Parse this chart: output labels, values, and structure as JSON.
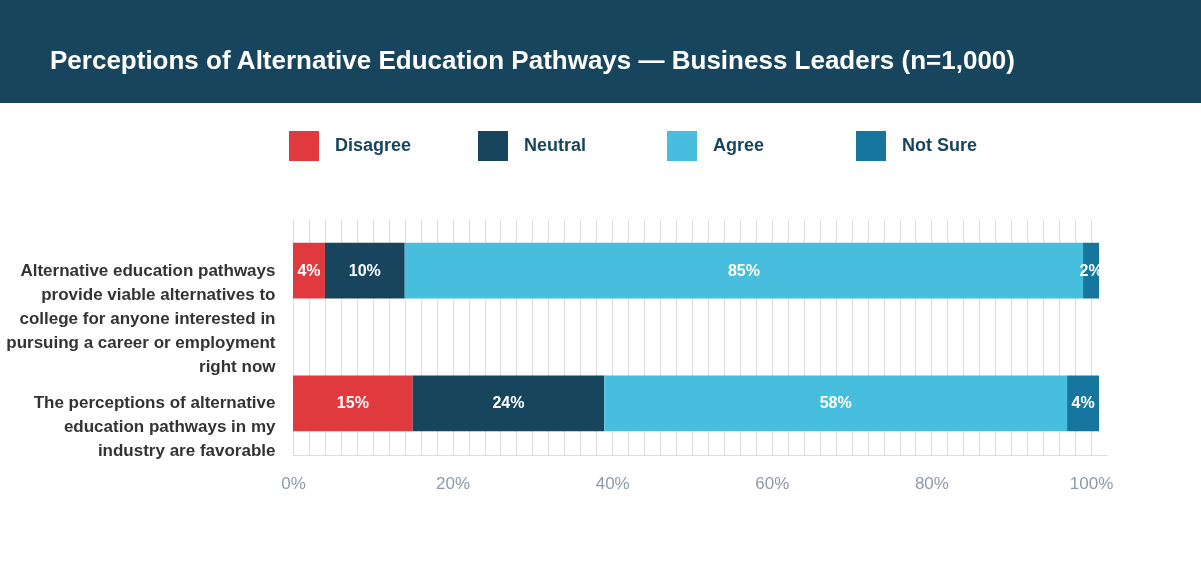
{
  "chart_data": {
    "type": "bar",
    "orientation": "horizontal",
    "stacked": true,
    "title": "Perceptions of Alternative Education Pathways — Business Leaders (n=1,000)",
    "categories": [
      "Alternative education pathways provide viable alternatives to college for anyone interested in pursuing a career or employment right now",
      "The perceptions of alternative education pathways in my industry are favorable"
    ],
    "series": [
      {
        "name": "Disagree",
        "color": "#e0393e",
        "values": [
          4,
          15
        ],
        "value_labels": [
          "4%",
          "15%"
        ]
      },
      {
        "name": "Neutral",
        "color": "#17455e",
        "values": [
          10,
          24
        ],
        "value_labels": [
          "10%",
          "24%"
        ]
      },
      {
        "name": "Agree",
        "color": "#47bede",
        "values": [
          85,
          58
        ],
        "value_labels": [
          "85%",
          "58%"
        ]
      },
      {
        "name": "Not Sure",
        "color": "#17769e",
        "values": [
          2,
          4
        ],
        "value_labels": [
          "2%",
          "4%"
        ]
      }
    ],
    "xlim": [
      0,
      102
    ],
    "xticks": [
      {
        "value": 0,
        "label": "0%"
      },
      {
        "value": 2,
        "label": null
      },
      {
        "value": 4,
        "label": null
      },
      {
        "value": 6,
        "label": null
      },
      {
        "value": 8,
        "label": null
      },
      {
        "value": 10,
        "label": null
      },
      {
        "value": 12,
        "label": null
      },
      {
        "value": 14,
        "label": null
      },
      {
        "value": 16,
        "label": null
      },
      {
        "value": 18,
        "label": null
      },
      {
        "value": 20,
        "label": "20%"
      },
      {
        "value": 22,
        "label": null
      },
      {
        "value": 24,
        "label": null
      },
      {
        "value": 26,
        "label": null
      },
      {
        "value": 28,
        "label": null
      },
      {
        "value": 30,
        "label": null
      },
      {
        "value": 32,
        "label": null
      },
      {
        "value": 34,
        "label": null
      },
      {
        "value": 36,
        "label": null
      },
      {
        "value": 38,
        "label": null
      },
      {
        "value": 40,
        "label": "40%"
      },
      {
        "value": 42,
        "label": null
      },
      {
        "value": 44,
        "label": null
      },
      {
        "value": 46,
        "label": null
      },
      {
        "value": 48,
        "label": null
      },
      {
        "value": 50,
        "label": null
      },
      {
        "value": 52,
        "label": null
      },
      {
        "value": 54,
        "label": null
      },
      {
        "value": 56,
        "label": null
      },
      {
        "value": 58,
        "label": null
      },
      {
        "value": 60,
        "label": "60%"
      },
      {
        "value": 62,
        "label": null
      },
      {
        "value": 64,
        "label": null
      },
      {
        "value": 66,
        "label": null
      },
      {
        "value": 68,
        "label": null
      },
      {
        "value": 70,
        "label": null
      },
      {
        "value": 72,
        "label": null
      },
      {
        "value": 74,
        "label": null
      },
      {
        "value": 76,
        "label": null
      },
      {
        "value": 78,
        "label": null
      },
      {
        "value": 80,
        "label": "80%"
      },
      {
        "value": 82,
        "label": null
      },
      {
        "value": 84,
        "label": null
      },
      {
        "value": 86,
        "label": null
      },
      {
        "value": 88,
        "label": null
      },
      {
        "value": 90,
        "label": null
      },
      {
        "value": 92,
        "label": null
      },
      {
        "value": 94,
        "label": null
      },
      {
        "value": 96,
        "label": null
      },
      {
        "value": 98,
        "label": null
      },
      {
        "value": 100,
        "label": "100%"
      }
    ],
    "grid": "x",
    "legend": "top"
  }
}
